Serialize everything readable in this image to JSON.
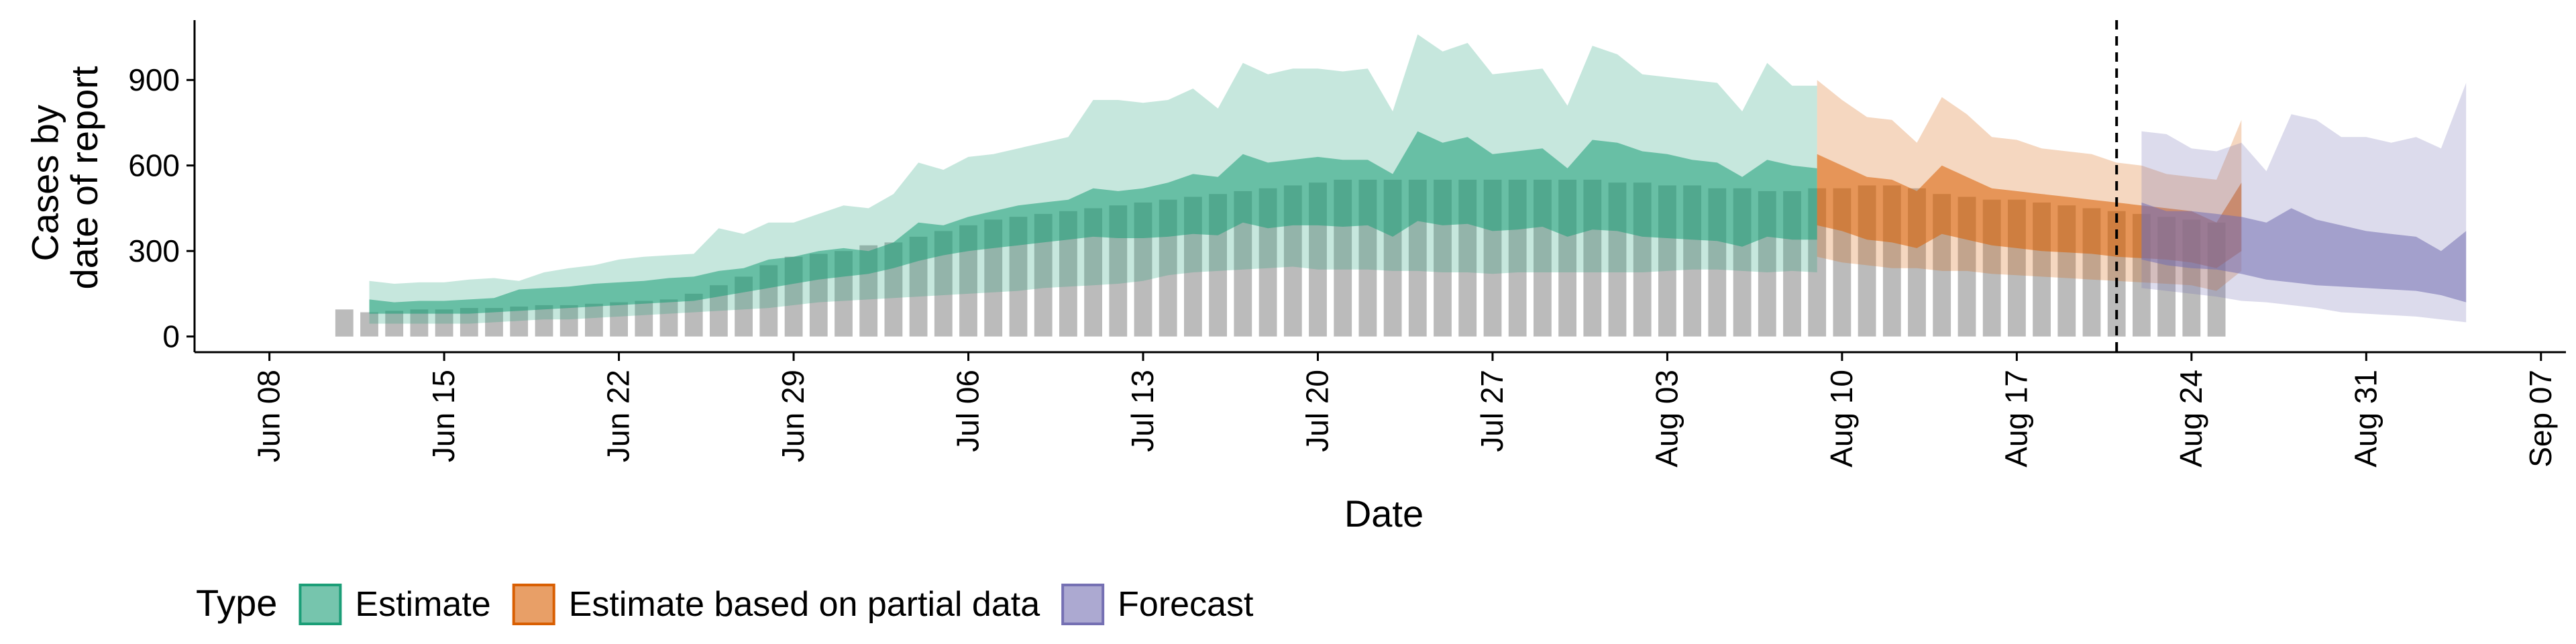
{
  "chart_data": {
    "type": "area",
    "xlabel": "Date",
    "ylabel_lines": [
      "Cases by",
      "date of report"
    ],
    "ylim": [
      -55,
      1110
    ],
    "xlim": [
      "2020-06-05",
      "2020-09-08"
    ],
    "y_ticks": [
      0,
      300,
      600,
      900
    ],
    "x_ticks": [
      {
        "date": "2020-06-08",
        "label": "Jun 08"
      },
      {
        "date": "2020-06-15",
        "label": "Jun 15"
      },
      {
        "date": "2020-06-22",
        "label": "Jun 22"
      },
      {
        "date": "2020-06-29",
        "label": "Jun 29"
      },
      {
        "date": "2020-07-06",
        "label": "Jul 06"
      },
      {
        "date": "2020-07-13",
        "label": "Jul 13"
      },
      {
        "date": "2020-07-20",
        "label": "Jul 20"
      },
      {
        "date": "2020-07-27",
        "label": "Jul 27"
      },
      {
        "date": "2020-08-03",
        "label": "Aug 03"
      },
      {
        "date": "2020-08-10",
        "label": "Aug 10"
      },
      {
        "date": "2020-08-17",
        "label": "Aug 17"
      },
      {
        "date": "2020-08-24",
        "label": "Aug 24"
      },
      {
        "date": "2020-08-31",
        "label": "Aug 31"
      },
      {
        "date": "2020-09-07",
        "label": "Sep 07"
      }
    ],
    "vline_date": "2020-08-21",
    "legend": {
      "title": "Type",
      "position": "bottom",
      "entries": [
        {
          "label": "Estimate",
          "fill": "#1b9e77",
          "stroke": "#1b9e77"
        },
        {
          "label": "Estimate based on partial data",
          "fill": "#d95f02",
          "stroke": "#d95f02"
        },
        {
          "label": "Forecast",
          "fill": "#7570b3",
          "stroke": "#7570b3"
        }
      ]
    },
    "colors": {
      "estimate": "#1b9e77",
      "partial": "#d95f02",
      "forecast": "#7570b3",
      "bars": "#9e9e9e",
      "vline": "#000000"
    },
    "bars": {
      "start_date": "2020-06-11",
      "values": [
        95,
        85,
        90,
        95,
        95,
        100,
        100,
        105,
        110,
        110,
        115,
        120,
        125,
        130,
        150,
        180,
        210,
        250,
        280,
        290,
        300,
        320,
        330,
        350,
        370,
        390,
        410,
        420,
        430,
        440,
        450,
        460,
        470,
        480,
        490,
        500,
        510,
        520,
        530,
        540,
        550,
        550,
        550,
        550,
        550,
        550,
        550,
        550,
        550,
        550,
        550,
        540,
        540,
        530,
        530,
        520,
        520,
        510,
        510,
        520,
        520,
        530,
        530,
        520,
        500,
        490,
        480,
        480,
        470,
        460,
        450,
        440,
        430,
        420,
        410,
        400
      ]
    },
    "estimate": {
      "start_date": "2020-06-12",
      "lower90": [
        45,
        45,
        45,
        45,
        45,
        50,
        55,
        60,
        60,
        65,
        70,
        75,
        80,
        85,
        90,
        95,
        100,
        110,
        120,
        125,
        130,
        135,
        140,
        145,
        150,
        155,
        160,
        170,
        175,
        180,
        185,
        195,
        215,
        225,
        230,
        235,
        240,
        245,
        235,
        235,
        235,
        230,
        230,
        225,
        225,
        220,
        225,
        225,
        225,
        225,
        225,
        225,
        230,
        235,
        235,
        230,
        225,
        230,
        225
      ],
      "upper90": [
        195,
        185,
        190,
        190,
        200,
        205,
        195,
        225,
        240,
        250,
        270,
        280,
        285,
        290,
        380,
        360,
        400,
        400,
        430,
        460,
        450,
        500,
        610,
        585,
        630,
        640,
        660,
        680,
        700,
        830,
        830,
        820,
        830,
        870,
        800,
        960,
        920,
        940,
        940,
        930,
        940,
        790,
        1060,
        1000,
        1030,
        920,
        930,
        940,
        810,
        1020,
        990,
        920,
        910,
        900,
        890,
        790,
        960,
        880,
        880
      ],
      "lower50": [
        80,
        80,
        80,
        80,
        80,
        85,
        90,
        95,
        100,
        105,
        110,
        115,
        120,
        125,
        140,
        155,
        170,
        185,
        200,
        210,
        220,
        240,
        265,
        285,
        300,
        310,
        320,
        330,
        340,
        350,
        345,
        345,
        350,
        360,
        355,
        400,
        380,
        390,
        390,
        385,
        390,
        350,
        405,
        390,
        395,
        370,
        375,
        385,
        350,
        375,
        370,
        350,
        345,
        340,
        335,
        315,
        350,
        340,
        340
      ],
      "upper50": [
        130,
        120,
        125,
        125,
        130,
        135,
        165,
        170,
        175,
        185,
        190,
        195,
        205,
        210,
        230,
        240,
        270,
        280,
        300,
        310,
        300,
        330,
        400,
        390,
        420,
        440,
        460,
        470,
        480,
        520,
        510,
        520,
        540,
        570,
        560,
        640,
        610,
        620,
        630,
        620,
        620,
        570,
        720,
        680,
        700,
        640,
        650,
        660,
        590,
        690,
        680,
        650,
        640,
        620,
        610,
        560,
        620,
        600,
        590
      ]
    },
    "partial": {
      "start_date": "2020-08-09",
      "lower90": [
        280,
        260,
        250,
        240,
        240,
        230,
        230,
        220,
        215,
        210,
        205,
        200,
        195,
        190,
        185,
        180,
        160,
        230
      ],
      "upper90": [
        900,
        830,
        770,
        760,
        680,
        840,
        780,
        700,
        690,
        660,
        650,
        640,
        610,
        600,
        570,
        560,
        550,
        760
      ],
      "lower50": [
        390,
        370,
        340,
        330,
        310,
        360,
        340,
        320,
        310,
        300,
        295,
        290,
        280,
        275,
        270,
        260,
        240,
        300
      ],
      "upper50": [
        640,
        600,
        560,
        550,
        510,
        600,
        560,
        520,
        510,
        500,
        490,
        480,
        470,
        460,
        450,
        440,
        400,
        540
      ]
    },
    "forecast": {
      "start_date": "2020-08-22",
      "lower90": [
        170,
        160,
        150,
        140,
        125,
        120,
        110,
        100,
        85,
        80,
        75,
        70,
        60,
        50
      ],
      "upper90": [
        720,
        710,
        660,
        650,
        680,
        580,
        780,
        760,
        700,
        700,
        680,
        700,
        660,
        890
      ],
      "lower50": [
        270,
        250,
        240,
        235,
        220,
        200,
        190,
        180,
        175,
        170,
        165,
        160,
        145,
        120
      ],
      "upper50": [
        470,
        440,
        440,
        430,
        420,
        400,
        450,
        410,
        390,
        370,
        360,
        350,
        300,
        370
      ]
    }
  }
}
